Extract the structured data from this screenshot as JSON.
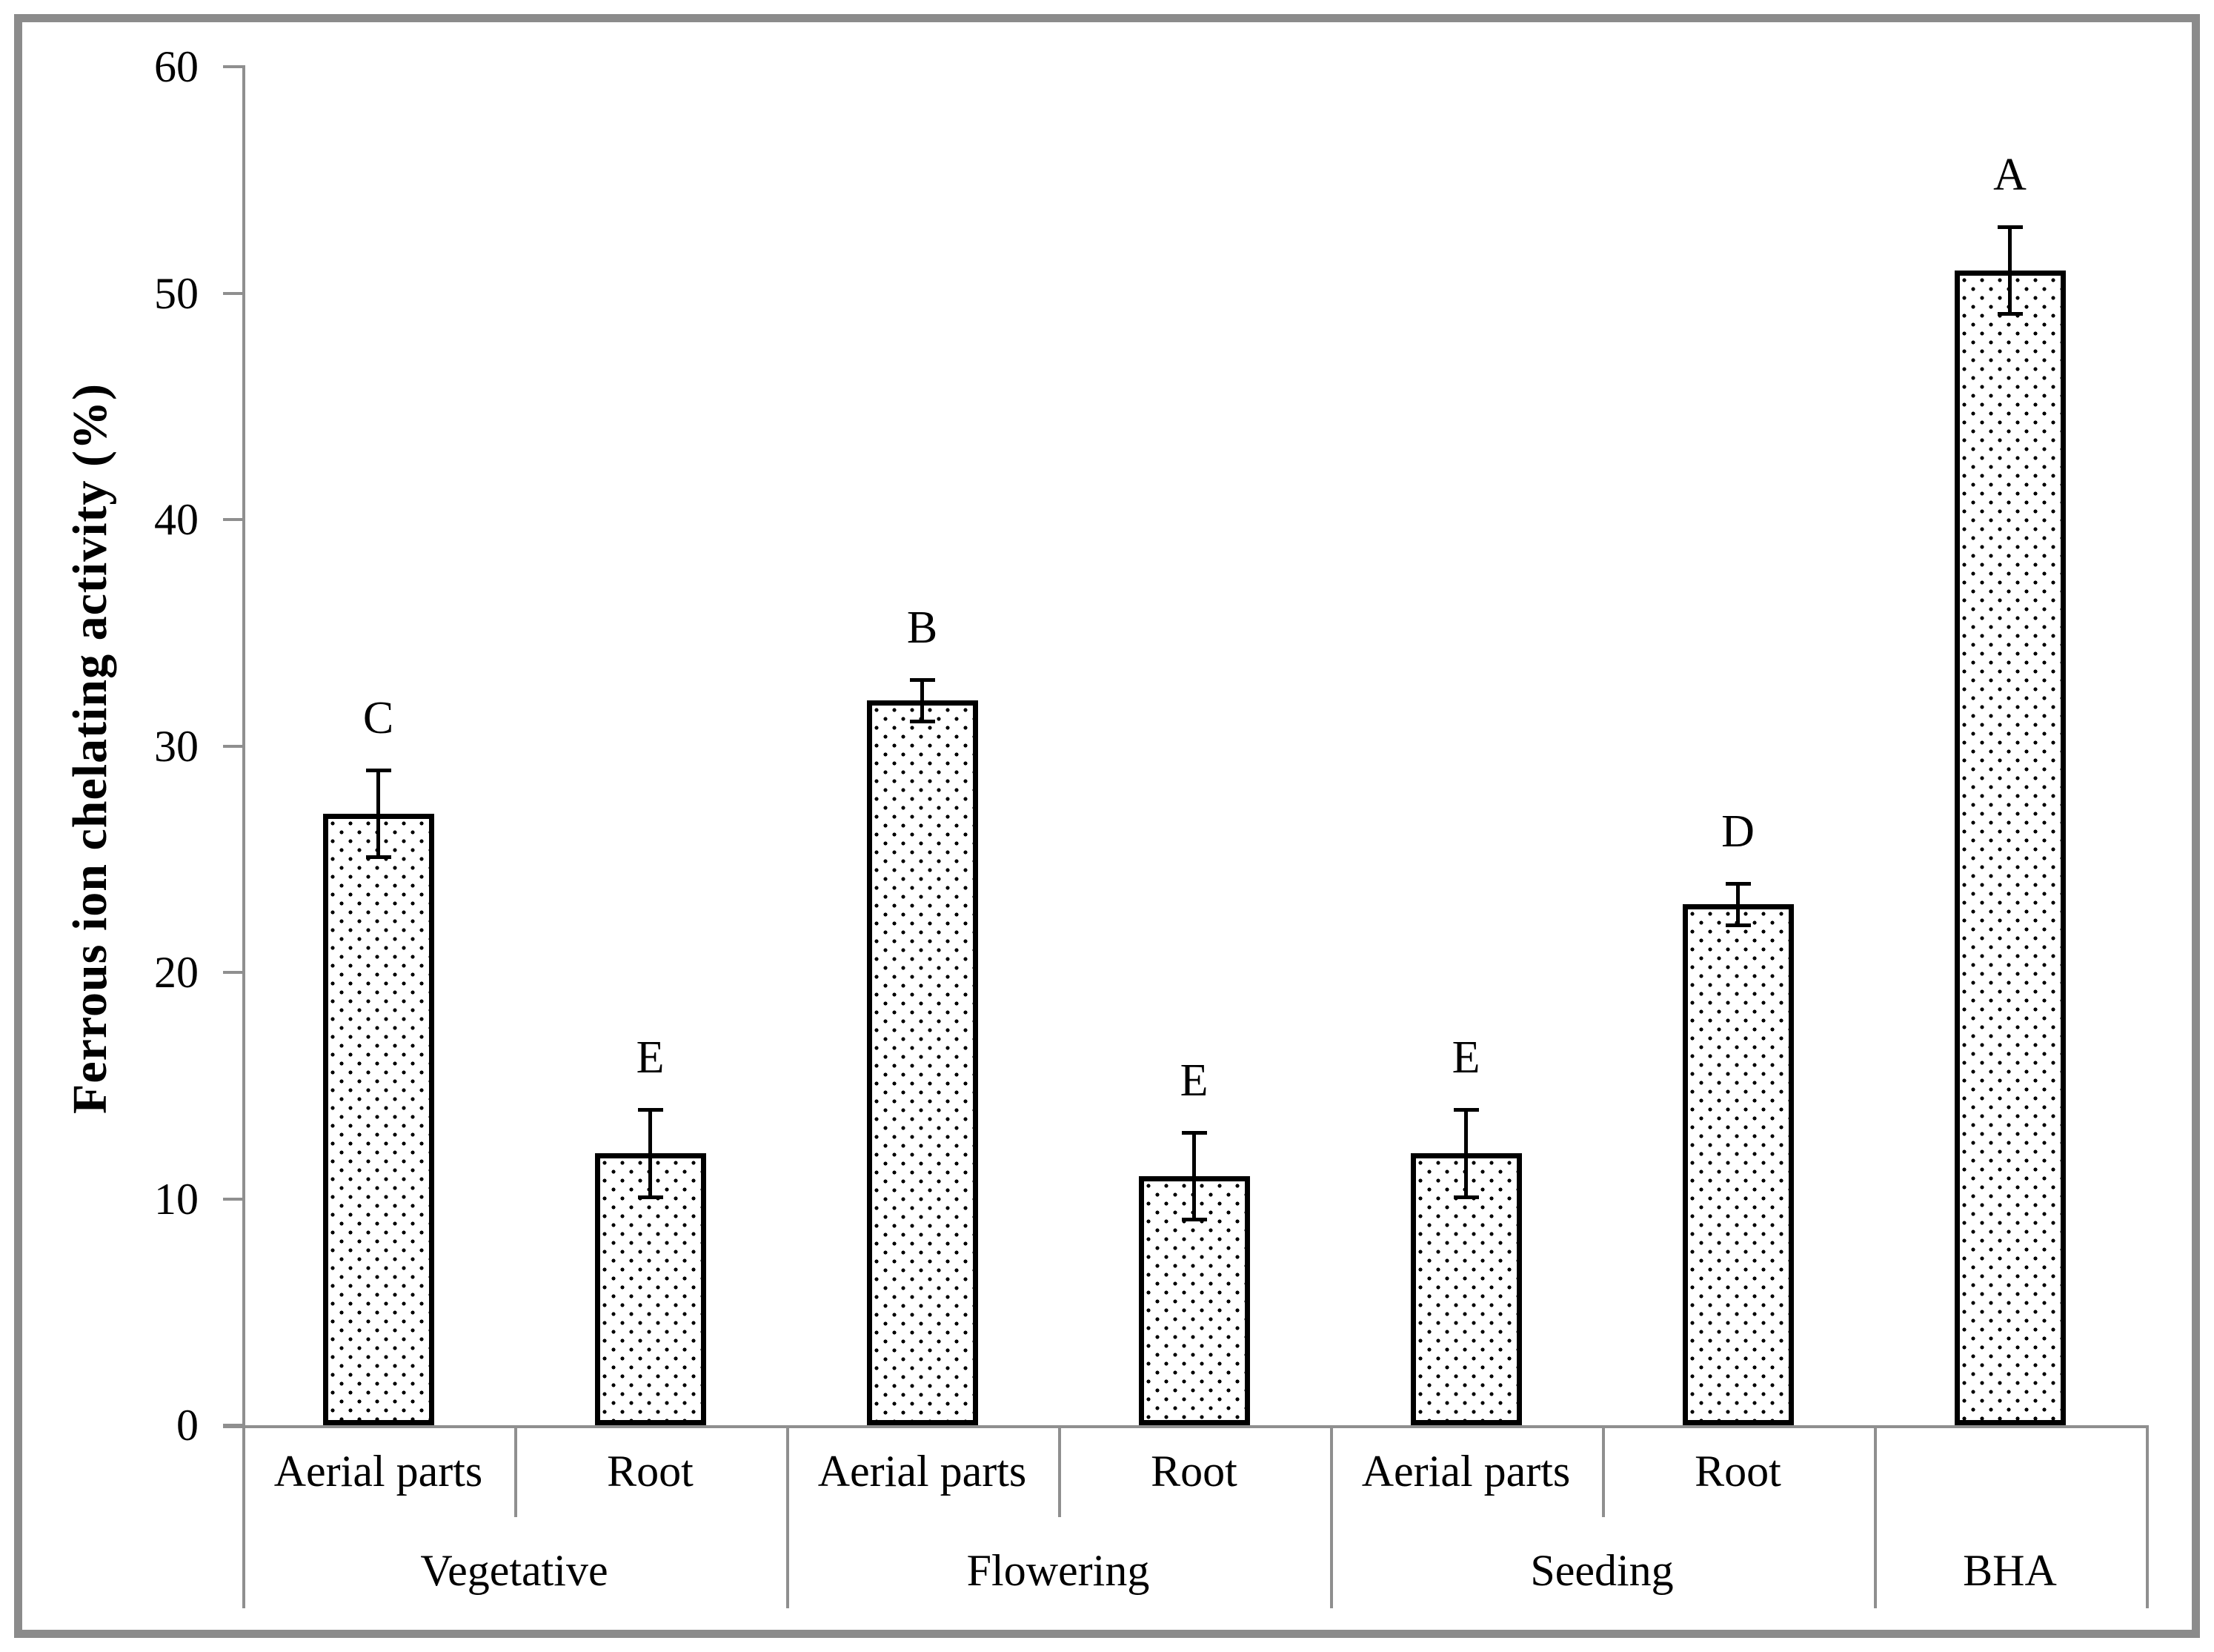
{
  "figure": {
    "frame_color": "#8b8b8b",
    "axis_color": "#8f8f8f",
    "bar_border_color": "#000000",
    "bar_fill": "white with black dot pattern",
    "text_color": "#000000"
  },
  "chart_data": {
    "type": "bar",
    "title": "",
    "xlabel": "",
    "ylabel": "Ferrous ion chelating activity (%)",
    "ylim": [
      0,
      60
    ],
    "yticks": [
      0,
      10,
      20,
      30,
      40,
      50,
      60
    ],
    "grid": false,
    "legend": null,
    "error_bars": true,
    "groups": [
      {
        "stage": "Vegetative",
        "bars": [
          {
            "part": "Aerial parts",
            "value": 27,
            "error": 2,
            "letter": "C"
          },
          {
            "part": "Root",
            "value": 12,
            "error": 2,
            "letter": "E"
          }
        ]
      },
      {
        "stage": "Flowering",
        "bars": [
          {
            "part": "Aerial parts",
            "value": 32,
            "error": 1,
            "letter": "B"
          },
          {
            "part": "Root",
            "value": 11,
            "error": 2,
            "letter": "E"
          }
        ]
      },
      {
        "stage": "Seeding",
        "bars": [
          {
            "part": "Aerial parts",
            "value": 12,
            "error": 2,
            "letter": "E"
          },
          {
            "part": "Root",
            "value": 23,
            "error": 1,
            "letter": "D"
          }
        ]
      },
      {
        "stage": "BHA",
        "bars": [
          {
            "part": "",
            "value": 51,
            "error": 2,
            "letter": "A"
          }
        ]
      }
    ]
  }
}
